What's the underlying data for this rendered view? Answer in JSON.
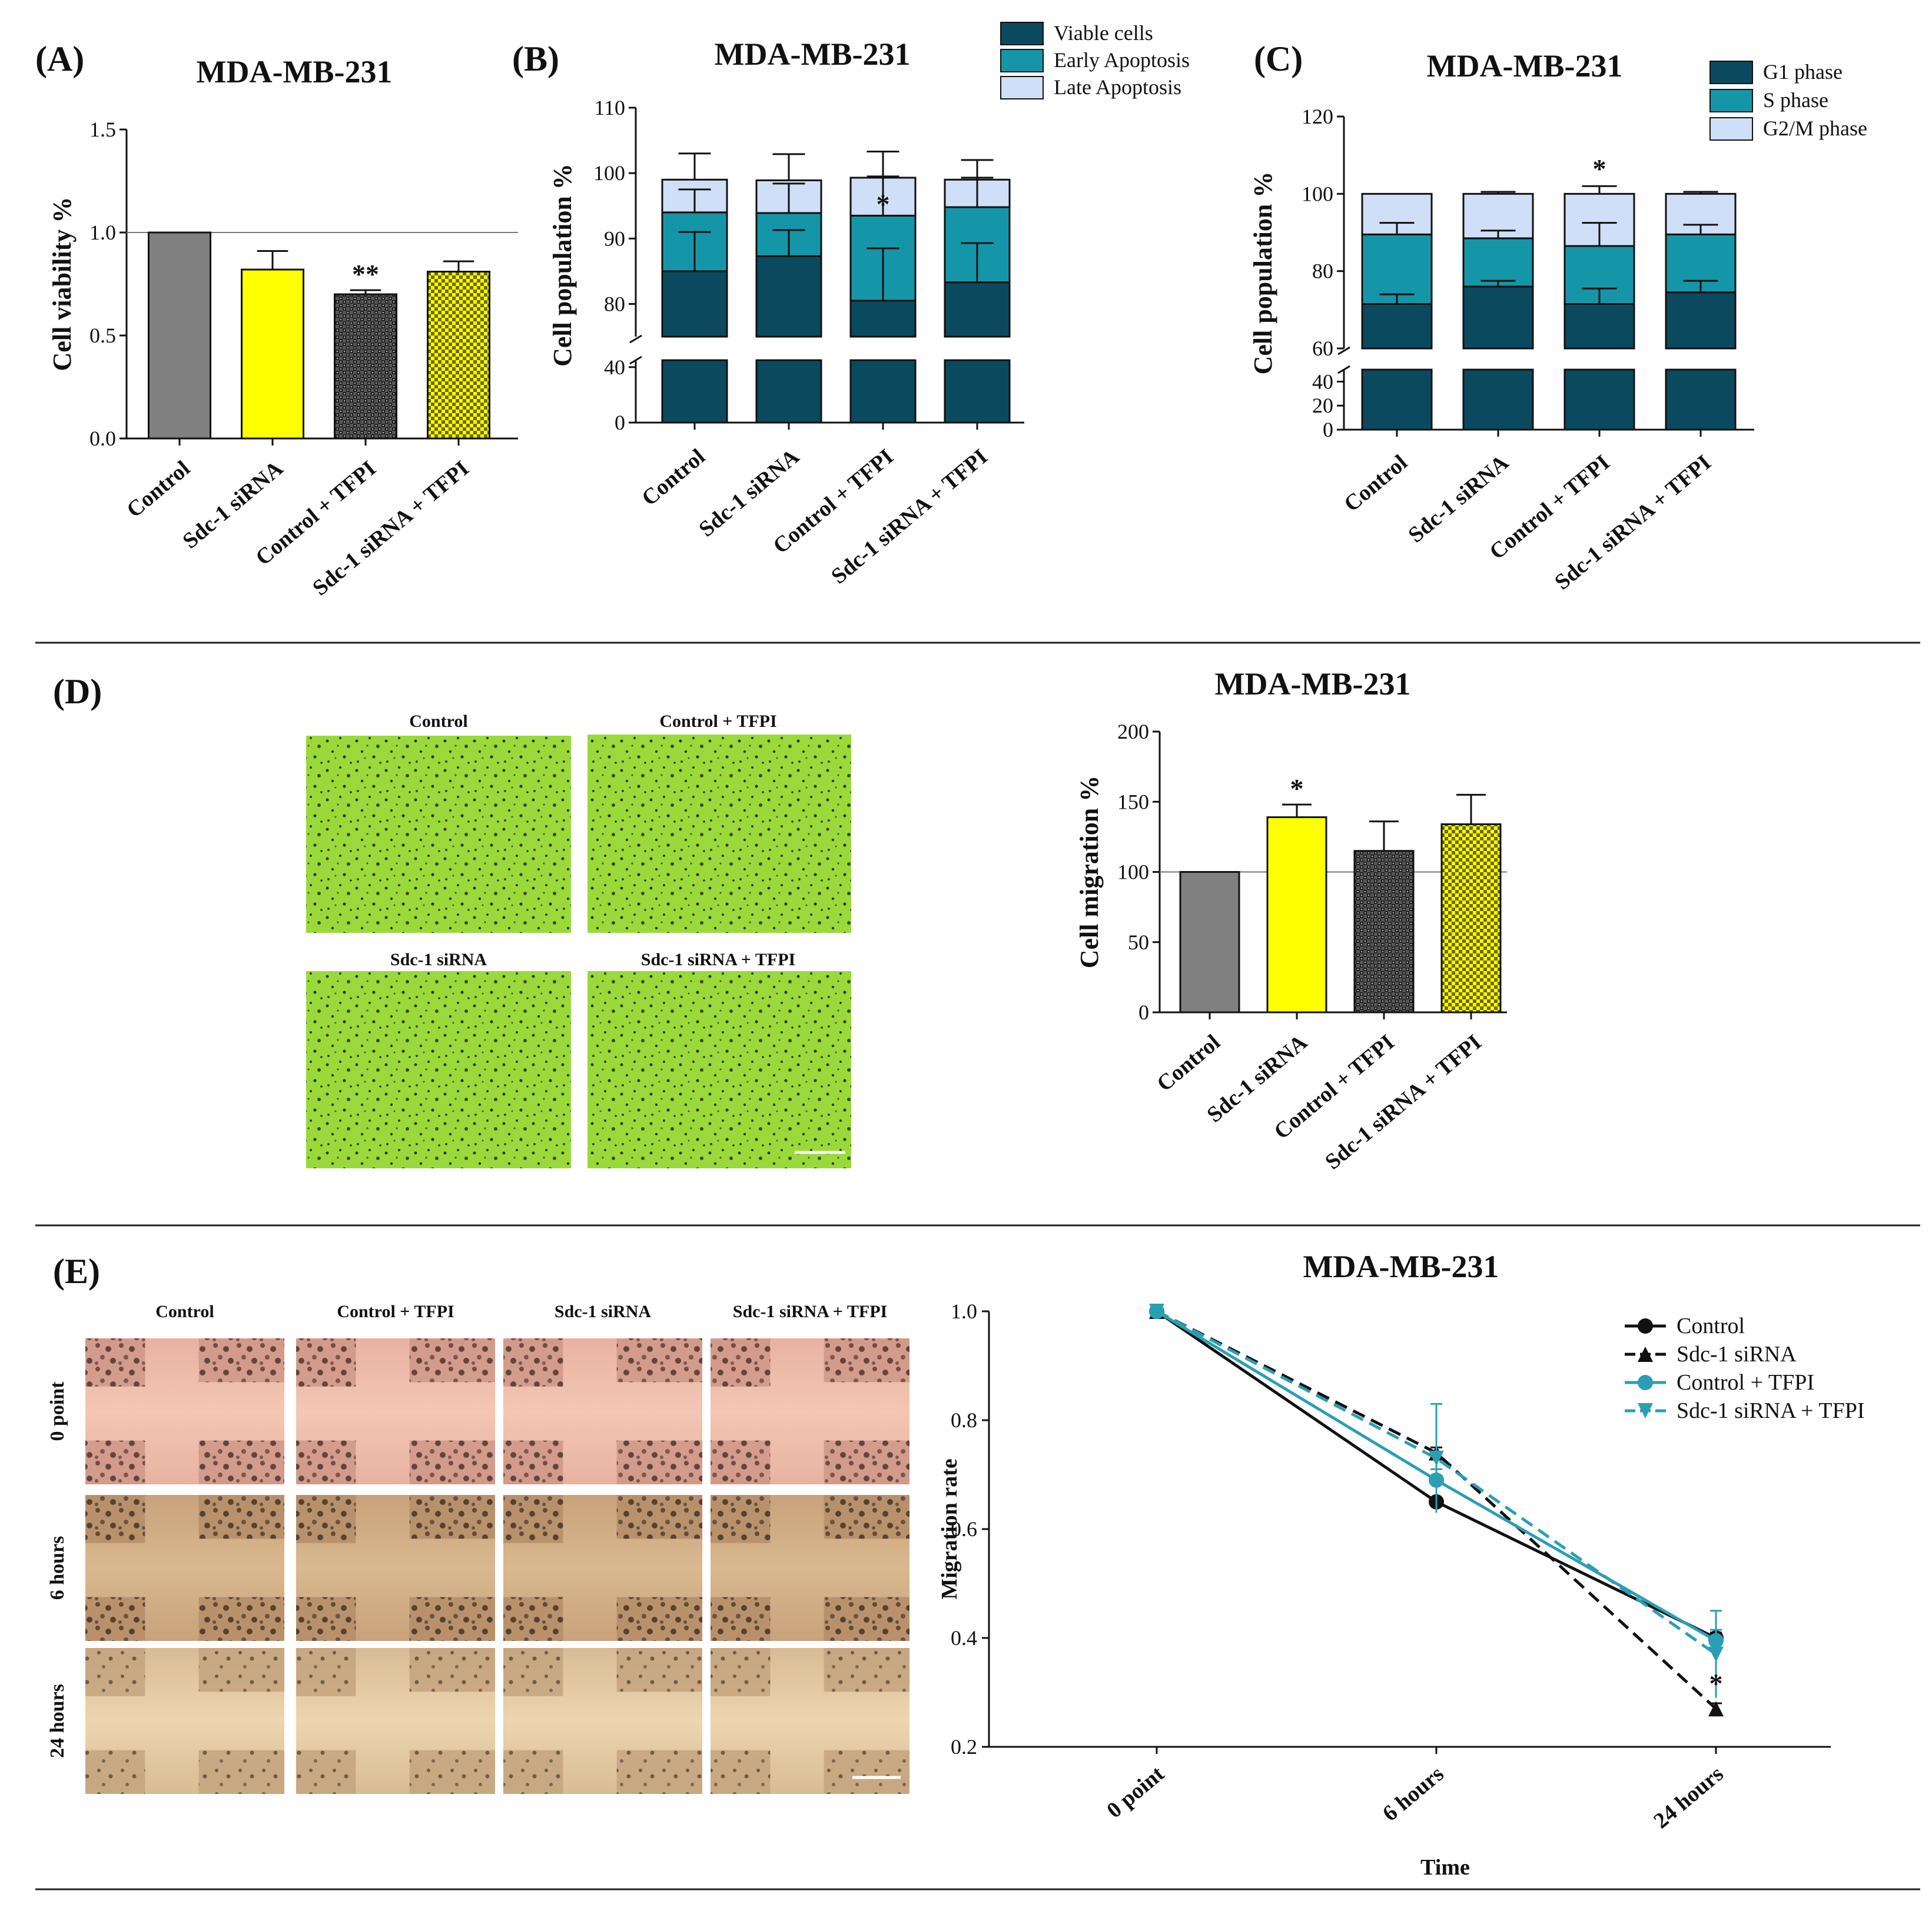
{
  "figure": {
    "divider_color": "#222222",
    "colors": {
      "control_gray": "#808080",
      "sdc_yellow": "#ffff00",
      "viable_dark": "#0b4a5e",
      "early_teal": "#1596a8",
      "late_light": "#cfdff7",
      "micro_green": "#9ad93a",
      "wound_pink": "#d49a8c",
      "wound_brown": "#b48c66",
      "line_teal": "#2a9fb4"
    }
  },
  "panels": {
    "A": {
      "label": "(A)",
      "title": "MDA-MB-231"
    },
    "B": {
      "label": "(B)",
      "title": "MDA-MB-231"
    },
    "C": {
      "label": "(C)",
      "title": "MDA-MB-231"
    },
    "D": {
      "label": "(D)",
      "title": "MDA-MB-231",
      "images": [
        "Control",
        "Control + TFPI",
        "Sdc-1 siRNA",
        "Sdc-1 siRNA + TFPI"
      ]
    },
    "E": {
      "label": "(E)",
      "title": "MDA-MB-231",
      "columns": [
        "Control",
        "Control + TFPI",
        "Sdc-1 siRNA",
        "Sdc-1 siRNA + TFPI"
      ],
      "rows": [
        "0 point",
        "6 hours",
        "24 hours"
      ]
    }
  },
  "chart_data": [
    {
      "id": "A",
      "type": "bar",
      "title": "MDA-MB-231",
      "ylabel": "Cell viability %",
      "categories": [
        "Control",
        "Sdc-1 siRNA",
        "Control + TFPI",
        "Sdc-1 siRNA + TFPI"
      ],
      "values": [
        1.0,
        0.82,
        0.7,
        0.81
      ],
      "errors": [
        0,
        0.09,
        0.02,
        0.05
      ],
      "ylim": [
        0,
        1.5
      ],
      "yticks": [
        "0.0",
        "0.5",
        "1.0",
        "1.5"
      ],
      "reference_line": 1.0,
      "annotations": [
        "",
        "",
        "**",
        ""
      ]
    },
    {
      "id": "B",
      "type": "bar",
      "stacked": true,
      "title": "MDA-MB-231",
      "ylabel": "Cell population %",
      "categories": [
        "Control",
        "Sdc-1 siRNA",
        "Control + TFPI",
        "Sdc-1 siRNA + TFPI"
      ],
      "series": [
        {
          "name": "Viable cells",
          "values": [
            85,
            87.3,
            80.5,
            83.3
          ],
          "errors": [
            6,
            4,
            8,
            6
          ]
        },
        {
          "name": "Early Apoptosis",
          "values": [
            9,
            6.6,
            13,
            11.5
          ],
          "errors": [
            3.5,
            4.5,
            6,
            4.5
          ]
        },
        {
          "name": "Late Apoptosis",
          "values": [
            5,
            5,
            5.8,
            4.2
          ],
          "errors": [
            4,
            4,
            4,
            3
          ]
        }
      ],
      "axis_break": [
        45,
        75
      ],
      "yticks_lower": [
        "0",
        "40"
      ],
      "yticks_upper": [
        "80",
        "90",
        "100",
        "110"
      ],
      "annotations": [
        "",
        "",
        "*",
        ""
      ],
      "legend_position": "top-right"
    },
    {
      "id": "C",
      "type": "bar",
      "stacked": true,
      "title": "MDA-MB-231",
      "ylabel": "Cell population %",
      "categories": [
        "Control",
        "Sdc-1 siRNA",
        "Control + TFPI",
        "Sdc-1 siRNA + TFPI"
      ],
      "series": [
        {
          "name": "G1 phase",
          "values": [
            71.5,
            76,
            71.5,
            74.5
          ],
          "errors": [
            2.5,
            1.5,
            4,
            3
          ]
        },
        {
          "name": "S phase",
          "values": [
            18,
            12.5,
            15,
            15
          ],
          "errors": [
            3,
            2,
            6,
            2.5
          ]
        },
        {
          "name": "G2/M phase",
          "values": [
            10.5,
            11.5,
            13.5,
            10.5
          ],
          "errors": [
            0,
            0.5,
            2,
            0.5
          ]
        }
      ],
      "axis_break": [
        50,
        60
      ],
      "yticks_lower": [
        "0",
        "20",
        "40"
      ],
      "yticks_upper": [
        "60",
        "80",
        "100",
        "120"
      ],
      "annotations": [
        "",
        "",
        "*",
        ""
      ],
      "legend_position": "top-right"
    },
    {
      "id": "D",
      "type": "bar",
      "title": "MDA-MB-231",
      "ylabel": "Cell migration %",
      "categories": [
        "Control",
        "Sdc-1 siRNA",
        "Control + TFPI",
        "Sdc-1 siRNA + TFPI"
      ],
      "values": [
        100,
        139,
        115,
        134
      ],
      "errors": [
        0,
        9,
        21,
        21
      ],
      "ylim": [
        0,
        200
      ],
      "yticks": [
        "0",
        "50",
        "100",
        "150",
        "200"
      ],
      "reference_line": 100,
      "annotations": [
        "",
        "*",
        "",
        ""
      ]
    },
    {
      "id": "E",
      "type": "line",
      "title": "MDA-MB-231",
      "xlabel": "Time",
      "ylabel": "Migration rate",
      "x": [
        "0 point",
        "6 hours",
        "24 hours"
      ],
      "ylim": [
        0.2,
        1.0
      ],
      "yticks": [
        "0.2",
        "0.4",
        "0.6",
        "0.8",
        "1.0"
      ],
      "series": [
        {
          "name": "Control",
          "values": [
            1.0,
            0.65,
            0.4
          ],
          "errors": [
            0,
            0.005,
            0.01
          ]
        },
        {
          "name": "Sdc-1 siRNA",
          "values": [
            1.0,
            0.74,
            0.27
          ],
          "errors": [
            0,
            0.01,
            0.01
          ]
        },
        {
          "name": "Control + TFPI",
          "values": [
            1.0,
            0.69,
            0.395
          ],
          "errors": [
            0,
            0.02,
            0.02
          ]
        },
        {
          "name": "Sdc-1 siRNA + TFPI",
          "values": [
            1.0,
            0.73,
            0.37
          ],
          "errors": [
            0,
            0.1,
            0.08
          ]
        }
      ],
      "annotations": [
        "",
        "",
        "*"
      ],
      "legend_position": "top-right"
    }
  ]
}
